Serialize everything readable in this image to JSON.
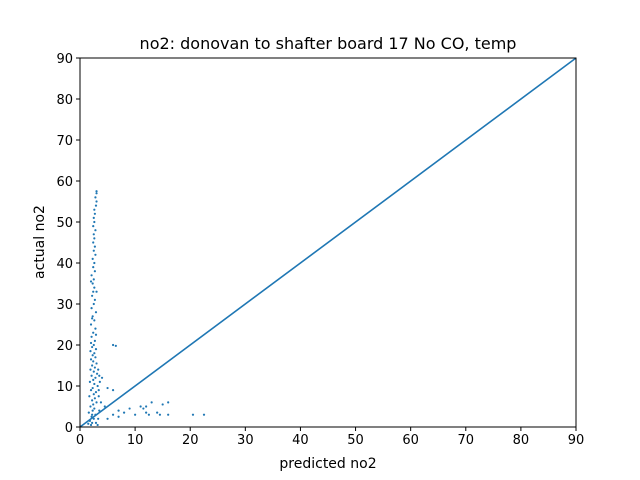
{
  "chart_data": {
    "type": "scatter",
    "title": "no2: donovan to shafter board 17 No CO, temp",
    "xlabel": "predicted no2",
    "ylabel": "actual no2",
    "xlim": [
      0,
      90
    ],
    "ylim": [
      0,
      90
    ],
    "xticks": [
      0,
      10,
      20,
      30,
      40,
      50,
      60,
      70,
      80,
      90
    ],
    "yticks": [
      0,
      10,
      20,
      30,
      40,
      50,
      60,
      70,
      80,
      90
    ],
    "grid": false,
    "series": [
      {
        "type": "scatter",
        "color": "#1f77b4",
        "x": [
          2.0,
          2.2,
          1.8,
          2.5,
          2.1,
          2.8,
          1.6,
          2.3,
          2.6,
          1.9,
          2.4,
          3.0,
          2.2,
          2.7,
          1.7,
          2.5,
          2.9,
          2.0,
          2.3,
          3.2,
          2.6,
          1.8,
          2.4,
          2.8,
          2.1,
          3.1,
          2.5,
          1.9,
          2.7,
          2.2,
          3.0,
          2.4,
          2.0,
          2.8,
          2.3,
          2.6,
          1.9,
          2.9,
          2.2,
          2.5,
          2.7,
          2.1,
          2.4,
          2.8,
          2.0,
          2.6,
          2.3,
          2.9,
          2.1,
          2.5,
          2.7,
          2.2,
          2.4,
          2.6,
          2.3,
          2.5,
          2.1,
          2.7,
          2.4,
          2.6,
          2.3,
          2.8,
          2.5,
          2.7,
          2.4,
          2.6,
          2.5,
          2.8,
          2.4,
          2.6,
          2.5,
          2.7,
          2.6,
          2.9,
          3.0,
          2.8,
          3.0,
          3.0,
          2.2,
          2.9,
          3.3,
          3.5,
          3.8,
          3.4,
          3.6,
          3.3,
          3.5,
          1.5,
          3.2,
          2.0,
          2.9,
          2.2,
          3.0,
          2.0,
          3.4,
          6.5,
          6.0,
          5.0,
          6.0,
          4.0,
          4.5,
          6.0,
          7.0,
          9.0,
          10.0,
          11.0,
          11.5,
          12.0,
          12.0,
          13.0,
          14.0,
          15.0,
          16.0,
          16.0,
          20.5,
          22.5,
          5.0,
          7.0,
          8.0,
          12.5,
          14.5
        ],
        "values": [
          0.5,
          1,
          1.5,
          2,
          2.5,
          3,
          3.5,
          4,
          4.5,
          5,
          5.5,
          6,
          6.5,
          7,
          7.5,
          8,
          8.5,
          9,
          9.5,
          10,
          10.5,
          11,
          11.5,
          12,
          12.5,
          13,
          13.5,
          14,
          14.5,
          15,
          15.5,
          16,
          16.5,
          17,
          17.5,
          18,
          18.5,
          19,
          19.5,
          20,
          21,
          22,
          23,
          24,
          25,
          26,
          27,
          28,
          29,
          30,
          31,
          32,
          33,
          34,
          35,
          36,
          37,
          38,
          39,
          40,
          41,
          42,
          43,
          44,
          45,
          46,
          47,
          48,
          49,
          50,
          51,
          52,
          53,
          54,
          55,
          56,
          57,
          57.5,
          3,
          1,
          2,
          4,
          6,
          9,
          11,
          14,
          12.5,
          0.8,
          0.5,
          20.5,
          22.5,
          26.5,
          33,
          35.5,
          7.5,
          19.8,
          20,
          9.5,
          9,
          12,
          5,
          3,
          4,
          4.5,
          3,
          5,
          4.5,
          5,
          3.5,
          6,
          3.5,
          5.5,
          6,
          3,
          3,
          3,
          2,
          2.5,
          3.5,
          3,
          3
        ]
      },
      {
        "type": "line",
        "color": "#1f77b4",
        "x": [
          0,
          90
        ],
        "values": [
          0,
          90
        ]
      }
    ]
  }
}
